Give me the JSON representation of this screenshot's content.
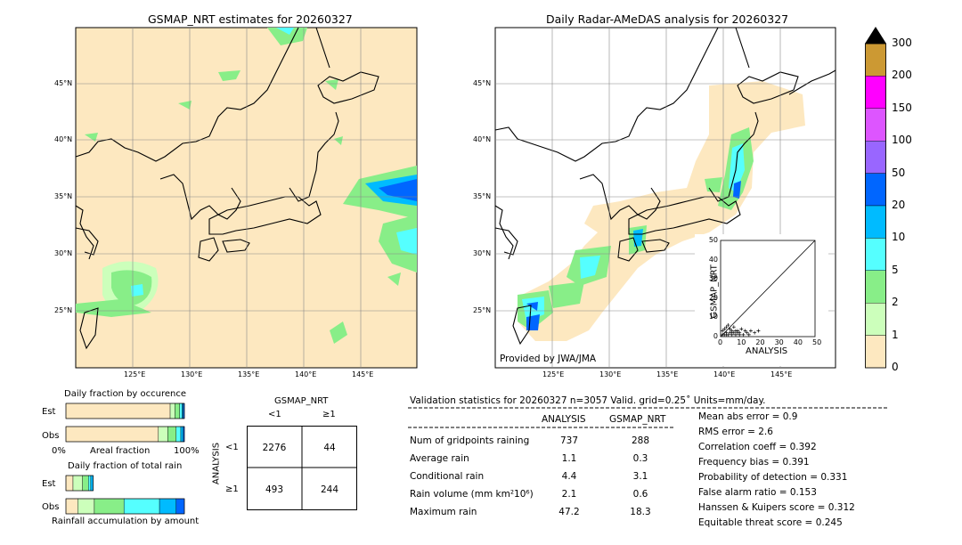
{
  "left_map": {
    "title": "GSMAP_NRT estimates for 20260327",
    "lon_ticks": [
      "125°E",
      "130°E",
      "135°E",
      "140°E",
      "145°E"
    ],
    "lat_ticks": [
      "45°N",
      "40°N",
      "35°N",
      "30°N",
      "25°N"
    ]
  },
  "right_map": {
    "title": "Daily Radar-AMeDAS analysis for 20260327",
    "lon_ticks": [
      "125°E",
      "130°E",
      "135°E",
      "140°E",
      "145°E"
    ],
    "lat_ticks": [
      "45°N",
      "40°N",
      "35°N",
      "30°N",
      "25°N"
    ],
    "credit": "Provided by JWA/JMA"
  },
  "colorbar": {
    "labels": [
      "300",
      "200",
      "150",
      "100",
      "50",
      "20",
      "10",
      "5",
      "2",
      "1",
      "0"
    ],
    "colors": [
      "#cc9933",
      "#ff00ff",
      "#dd55ff",
      "#9966ff",
      "#0066ff",
      "#00bbff",
      "#55ffff",
      "#88ee88",
      "#ccffbb",
      "#fde8c0"
    ]
  },
  "chart_data": [
    {
      "type": "scatter",
      "title": "",
      "xlabel": "ANALYSIS",
      "ylabel": "GSMAP_NRT",
      "xlim": [
        0,
        50
      ],
      "ylim": [
        0,
        50
      ],
      "x_ticks": [
        "0",
        "10",
        "20",
        "30",
        "40",
        "50"
      ],
      "y_ticks": [
        "0",
        "10",
        "20",
        "30",
        "40",
        "50"
      ],
      "points": [
        [
          1,
          1
        ],
        [
          2,
          1
        ],
        [
          3,
          2
        ],
        [
          4,
          1
        ],
        [
          5,
          2
        ],
        [
          6,
          1
        ],
        [
          7,
          2
        ],
        [
          8,
          1
        ],
        [
          9,
          3
        ],
        [
          10,
          2
        ],
        [
          12,
          1
        ],
        [
          14,
          2
        ],
        [
          16,
          3
        ],
        [
          18,
          2
        ],
        [
          2,
          4
        ],
        [
          3,
          5
        ],
        [
          5,
          4
        ],
        [
          6,
          3
        ],
        [
          7,
          5
        ],
        [
          9,
          2
        ],
        [
          11,
          4
        ],
        [
          1,
          3
        ],
        [
          4,
          6
        ],
        [
          8,
          3
        ],
        [
          20,
          3
        ],
        [
          15,
          1
        ],
        [
          3,
          1
        ],
        [
          6,
          2
        ],
        [
          10,
          1
        ],
        [
          13,
          3
        ]
      ]
    },
    {
      "type": "bar",
      "title": "Daily fraction by occurence",
      "categories": [
        "Est",
        "Obs"
      ],
      "xlabel": "Areal fraction",
      "x_ticks": [
        "0%",
        "100%"
      ],
      "series_colors": [
        "#fde8c0",
        "#ccffbb",
        "#88ee88",
        "#55ffff",
        "#00bbff",
        "#0066ff"
      ],
      "values": [
        [
          0.88,
          0.04,
          0.04,
          0.02,
          0.01,
          0.01
        ],
        [
          0.78,
          0.08,
          0.07,
          0.04,
          0.02,
          0.01
        ]
      ]
    },
    {
      "type": "bar",
      "title": "Daily fraction of total rain",
      "categories": [
        "Est",
        "Obs"
      ],
      "xlabel": "Rainfall accumulation by amount",
      "series_colors": [
        "#fde8c0",
        "#ccffbb",
        "#88ee88",
        "#55ffff",
        "#00bbff",
        "#0066ff"
      ],
      "values": [
        [
          0.06,
          0.08,
          0.05,
          0.02,
          0.02,
          0.0
        ],
        [
          0.1,
          0.14,
          0.25,
          0.3,
          0.14,
          0.07
        ]
      ]
    }
  ],
  "contingency": {
    "title": "GSMAP_NRT",
    "col_labels": [
      "<1",
      "≥1"
    ],
    "row_title": "ANALYSIS",
    "row_labels": [
      "<1",
      "≥1"
    ],
    "cells": [
      "2276",
      "44",
      "493",
      "244"
    ]
  },
  "validation": {
    "header": "Validation statistics for 20260327  n=3057 Valid. grid=0.25˚ Units=mm/day.",
    "col_analysis": "ANALYSIS",
    "col_gsmap": "GSMAP_NRT",
    "rows": [
      {
        "label": "Num of gridpoints raining",
        "analysis": "737",
        "gsmap": "288"
      },
      {
        "label": "Average rain",
        "analysis": "1.1",
        "gsmap": "0.3"
      },
      {
        "label": "Conditional rain",
        "analysis": "4.4",
        "gsmap": "3.1"
      },
      {
        "label": "Rain volume (mm km²10⁶)",
        "analysis": "2.1",
        "gsmap": "0.6"
      },
      {
        "label": "Maximum rain",
        "analysis": "47.2",
        "gsmap": "18.3"
      }
    ],
    "scores": [
      "Mean abs error =    0.9",
      "RMS error =    2.6",
      "Correlation coeff =  0.392",
      "Frequency bias =  0.391",
      "Probability of detection =  0.331",
      "False alarm ratio =  0.153",
      "Hanssen & Kuipers score =  0.312",
      "Equitable threat score =  0.245"
    ]
  }
}
